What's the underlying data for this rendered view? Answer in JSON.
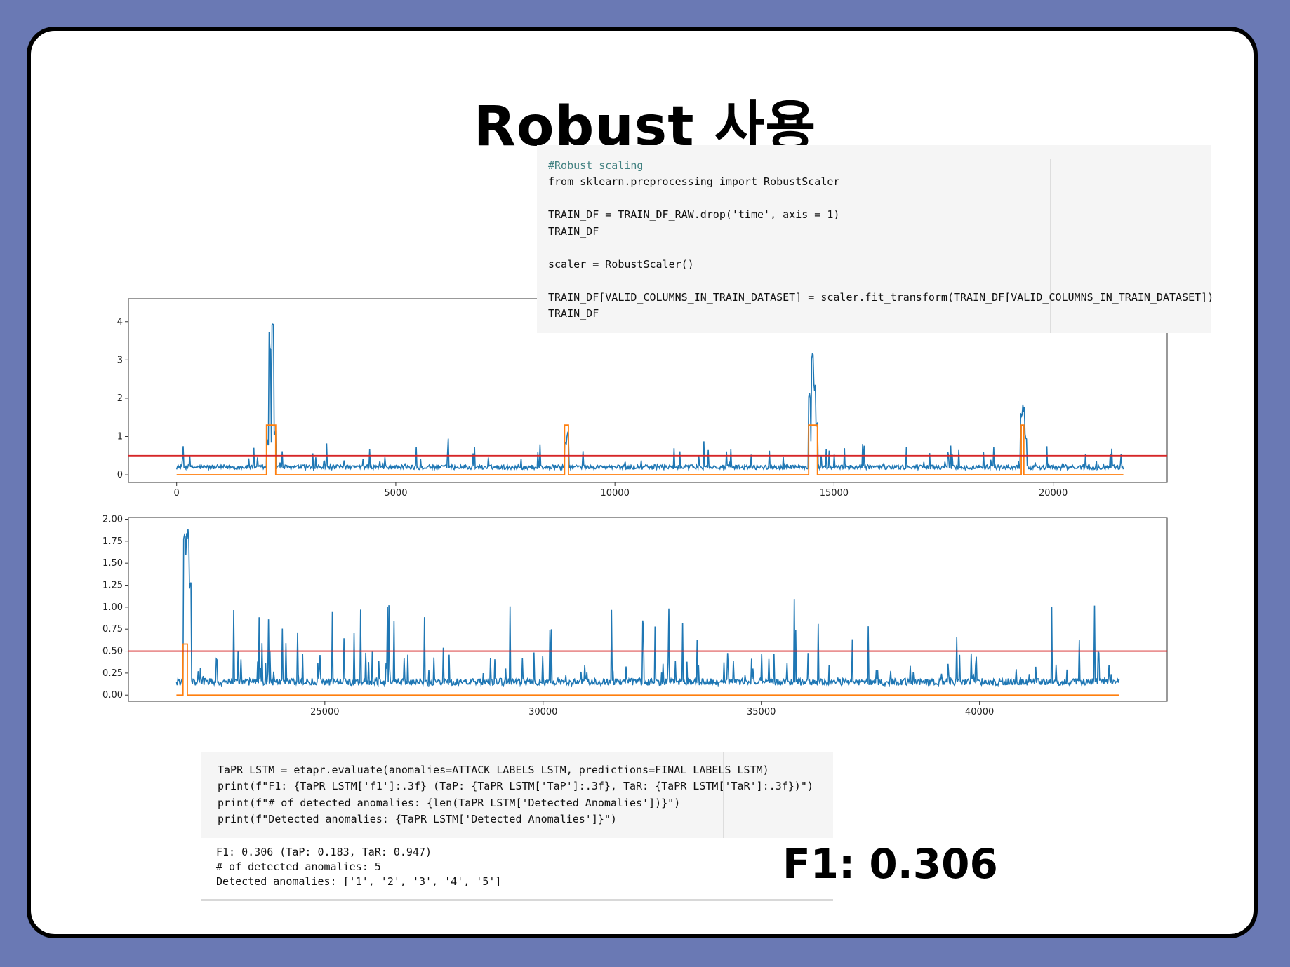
{
  "slide": {
    "title": "Robust 사용",
    "f1_label": "F1: 0.306"
  },
  "code_top": {
    "lines": [
      "#Robust scaling",
      "from sklearn.preprocessing import RobustScaler",
      "",
      "TRAIN_DF = TRAIN_DF_RAW.drop('time', axis = 1)",
      "TRAIN_DF",
      "",
      "scaler = RobustScaler()",
      "",
      "TRAIN_DF[VALID_COLUMNS_IN_TRAIN_DATASET] = scaler.fit_transform(TRAIN_DF[VALID_COLUMNS_IN_TRAIN_DATASET])",
      "TRAIN_DF"
    ]
  },
  "code_bottom": {
    "lines": [
      "TaPR_LSTM = etapr.evaluate(anomalies=ATTACK_LABELS_LSTM, predictions=FINAL_LABELS_LSTM)",
      "print(f\"F1: {TaPR_LSTM['f1']:.3f} (TaP: {TaPR_LSTM['TaP']:.3f}, TaR: {TaPR_LSTM['TaR']:.3f})\")",
      "print(f\"# of detected anomalies: {len(TaPR_LSTM['Detected_Anomalies'])}\")",
      "print(f\"Detected anomalies: {TaPR_LSTM['Detected_Anomalies']}\")"
    ]
  },
  "output": {
    "lines": [
      "F1: 0.306 (TaP: 0.183, TaR: 0.947)",
      "# of detected anomalies: 5",
      "Detected anomalies: ['1', '2', '3', '4', '5']"
    ]
  },
  "chart_data": [
    {
      "type": "line",
      "title": "",
      "xlabel": "",
      "ylabel": "",
      "xlim": [
        -1100,
        22600
      ],
      "ylim": [
        -0.2,
        4.6
      ],
      "xticks": [
        0,
        5000,
        10000,
        15000,
        20000
      ],
      "xtick_labels": [
        "0",
        "5000",
        "10000",
        "15000",
        "20000"
      ],
      "yticks": [
        0,
        1,
        2,
        3,
        4
      ],
      "ytick_labels": [
        "0",
        "1",
        "2",
        "3",
        "4"
      ],
      "threshold": 0.5,
      "colors": {
        "signal": "#1f77b4",
        "label": "#ff7f0e",
        "threshold": "#d62728"
      },
      "baseline": 0.2,
      "signal_range": [
        0,
        21600
      ],
      "label_high": 1.3,
      "label_low": 0.0,
      "label_segments": [
        [
          2050,
          2260
        ],
        [
          8850,
          8940
        ],
        [
          14420,
          14620
        ],
        [
          19270,
          19330
        ]
      ],
      "peaks": [
        {
          "x": 2130,
          "y": 3.8
        },
        {
          "x": 2190,
          "y": 4.35
        },
        {
          "x": 2240,
          "y": 1.2
        },
        {
          "x": 8870,
          "y": 0.9
        },
        {
          "x": 8920,
          "y": 1.1
        },
        {
          "x": 14440,
          "y": 2.3
        },
        {
          "x": 14500,
          "y": 3.3
        },
        {
          "x": 14560,
          "y": 2.5
        },
        {
          "x": 14610,
          "y": 1.4
        },
        {
          "x": 19280,
          "y": 1.75
        },
        {
          "x": 19320,
          "y": 1.85
        },
        {
          "x": 19380,
          "y": 1.1
        }
      ],
      "grid": false
    },
    {
      "type": "line",
      "title": "",
      "xlabel": "",
      "ylabel": "",
      "xlim": [
        20500,
        44300
      ],
      "ylim": [
        -0.07,
        2.02
      ],
      "xticks": [
        25000,
        30000,
        35000,
        40000
      ],
      "xtick_labels": [
        "25000",
        "30000",
        "35000",
        "40000"
      ],
      "yticks": [
        0.0,
        0.25,
        0.5,
        0.75,
        1.0,
        1.25,
        1.5,
        1.75,
        2.0
      ],
      "ytick_labels": [
        "0.00",
        "0.25",
        "0.50",
        "0.75",
        "1.00",
        "1.25",
        "1.50",
        "1.75",
        "2.00"
      ],
      "threshold": 0.5,
      "colors": {
        "signal": "#1f77b4",
        "label": "#ff7f0e",
        "threshold": "#d62728"
      },
      "baseline": 0.15,
      "signal_range": [
        21600,
        43200
      ],
      "label_high": 0.58,
      "label_low": 0.0,
      "label_segments": [
        [
          21750,
          21850
        ]
      ],
      "peaks": [
        {
          "x": 21780,
          "y": 1.88
        },
        {
          "x": 21830,
          "y": 1.85
        },
        {
          "x": 21880,
          "y": 1.9
        },
        {
          "x": 21920,
          "y": 1.3
        }
      ],
      "grid": false
    }
  ]
}
